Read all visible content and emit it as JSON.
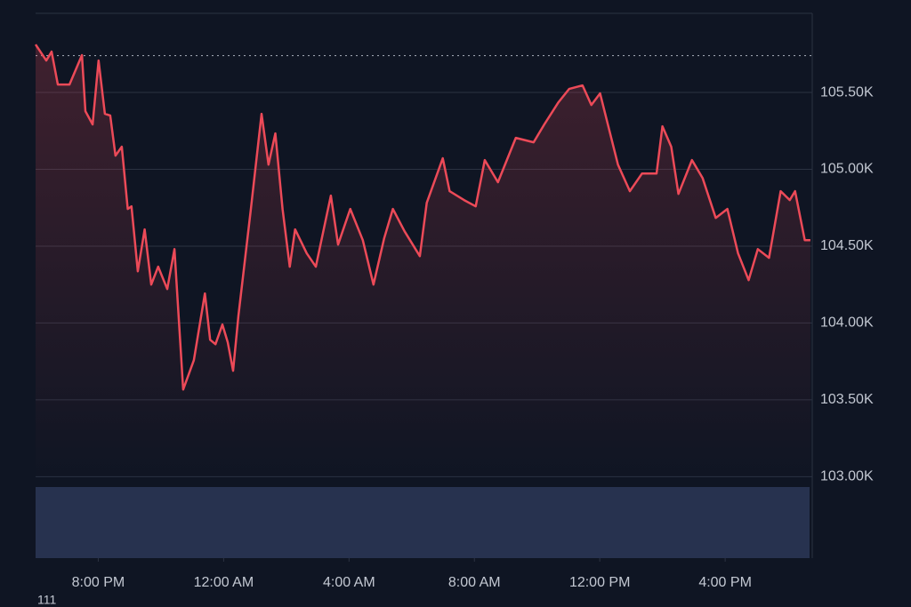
{
  "chart_data": {
    "type": "line",
    "x": [
      18.0,
      18.34,
      18.51,
      18.71,
      19.08,
      19.48,
      19.59,
      19.82,
      20.01,
      20.21,
      20.38,
      20.55,
      20.75,
      20.94,
      21.06,
      21.26,
      21.48,
      21.69,
      21.91,
      22.2,
      22.43,
      22.71,
      23.05,
      23.4,
      23.57,
      23.74,
      23.96,
      24.13,
      24.3,
      24.47,
      24.87,
      25.21,
      25.43,
      25.65,
      25.88,
      26.11,
      26.28,
      26.65,
      26.94,
      27.42,
      27.65,
      28.04,
      28.44,
      28.78,
      29.12,
      29.4,
      29.77,
      30.26,
      30.48,
      30.99,
      31.21,
      31.67,
      32.04,
      32.33,
      32.75,
      33.32,
      33.89,
      34.23,
      34.68,
      35.02,
      35.45,
      35.73,
      36.01,
      36.58,
      36.96,
      37.35,
      37.81,
      38.0,
      38.28,
      38.51,
      38.94,
      39.28,
      39.7,
      40.07,
      40.41,
      40.75,
      41.04,
      41.4,
      41.77,
      42.06,
      42.23,
      42.54,
      42.72
    ],
    "series": [
      {
        "color": "#ec4a58",
        "values": [
          105812,
          105708,
          105766,
          105552,
          105552,
          105743,
          105378,
          105292,
          105708,
          105361,
          105350,
          105089,
          105147,
          104742,
          104759,
          104337,
          104609,
          104250,
          104366,
          104221,
          104481,
          103567,
          103758,
          104192,
          103891,
          103862,
          103990,
          103874,
          103689,
          104047,
          104742,
          105361,
          105031,
          105234,
          104742,
          104366,
          104609,
          104453,
          104366,
          104829,
          104510,
          104742,
          104539,
          104250,
          104551,
          104742,
          104597,
          104435,
          104782,
          105072,
          104858,
          104800,
          104759,
          105060,
          104916,
          105205,
          105176,
          105292,
          105436,
          105523,
          105546,
          105419,
          105494,
          105031,
          104858,
          104973,
          104973,
          105280,
          105147,
          104840,
          105060,
          104944,
          104684,
          104742,
          104453,
          104279,
          104481,
          104424,
          104858,
          104800,
          104858,
          104539,
          104539
        ]
      }
    ],
    "reference": 105740,
    "xlim": [
      18,
      42.75
    ],
    "ylim": [
      102470,
      106015
    ],
    "xticks": [
      {
        "value": 20,
        "label": "8:00 PM"
      },
      {
        "value": 24,
        "label": "12:00 AM"
      },
      {
        "value": 28,
        "label": "4:00 AM"
      },
      {
        "value": 32,
        "label": "8:00 AM"
      },
      {
        "value": 36,
        "label": "12:00 PM"
      },
      {
        "value": 40,
        "label": "4:00 PM"
      }
    ],
    "yticks": [
      {
        "value": 103000,
        "label": "103.00K"
      },
      {
        "value": 103500,
        "label": "103.50K"
      },
      {
        "value": 104000,
        "label": "104.00K"
      },
      {
        "value": 104500,
        "label": "104.50K"
      },
      {
        "value": 105000,
        "label": "105.00K"
      },
      {
        "value": 105500,
        "label": "105.50K"
      }
    ],
    "grid": true,
    "footnote": "111"
  }
}
